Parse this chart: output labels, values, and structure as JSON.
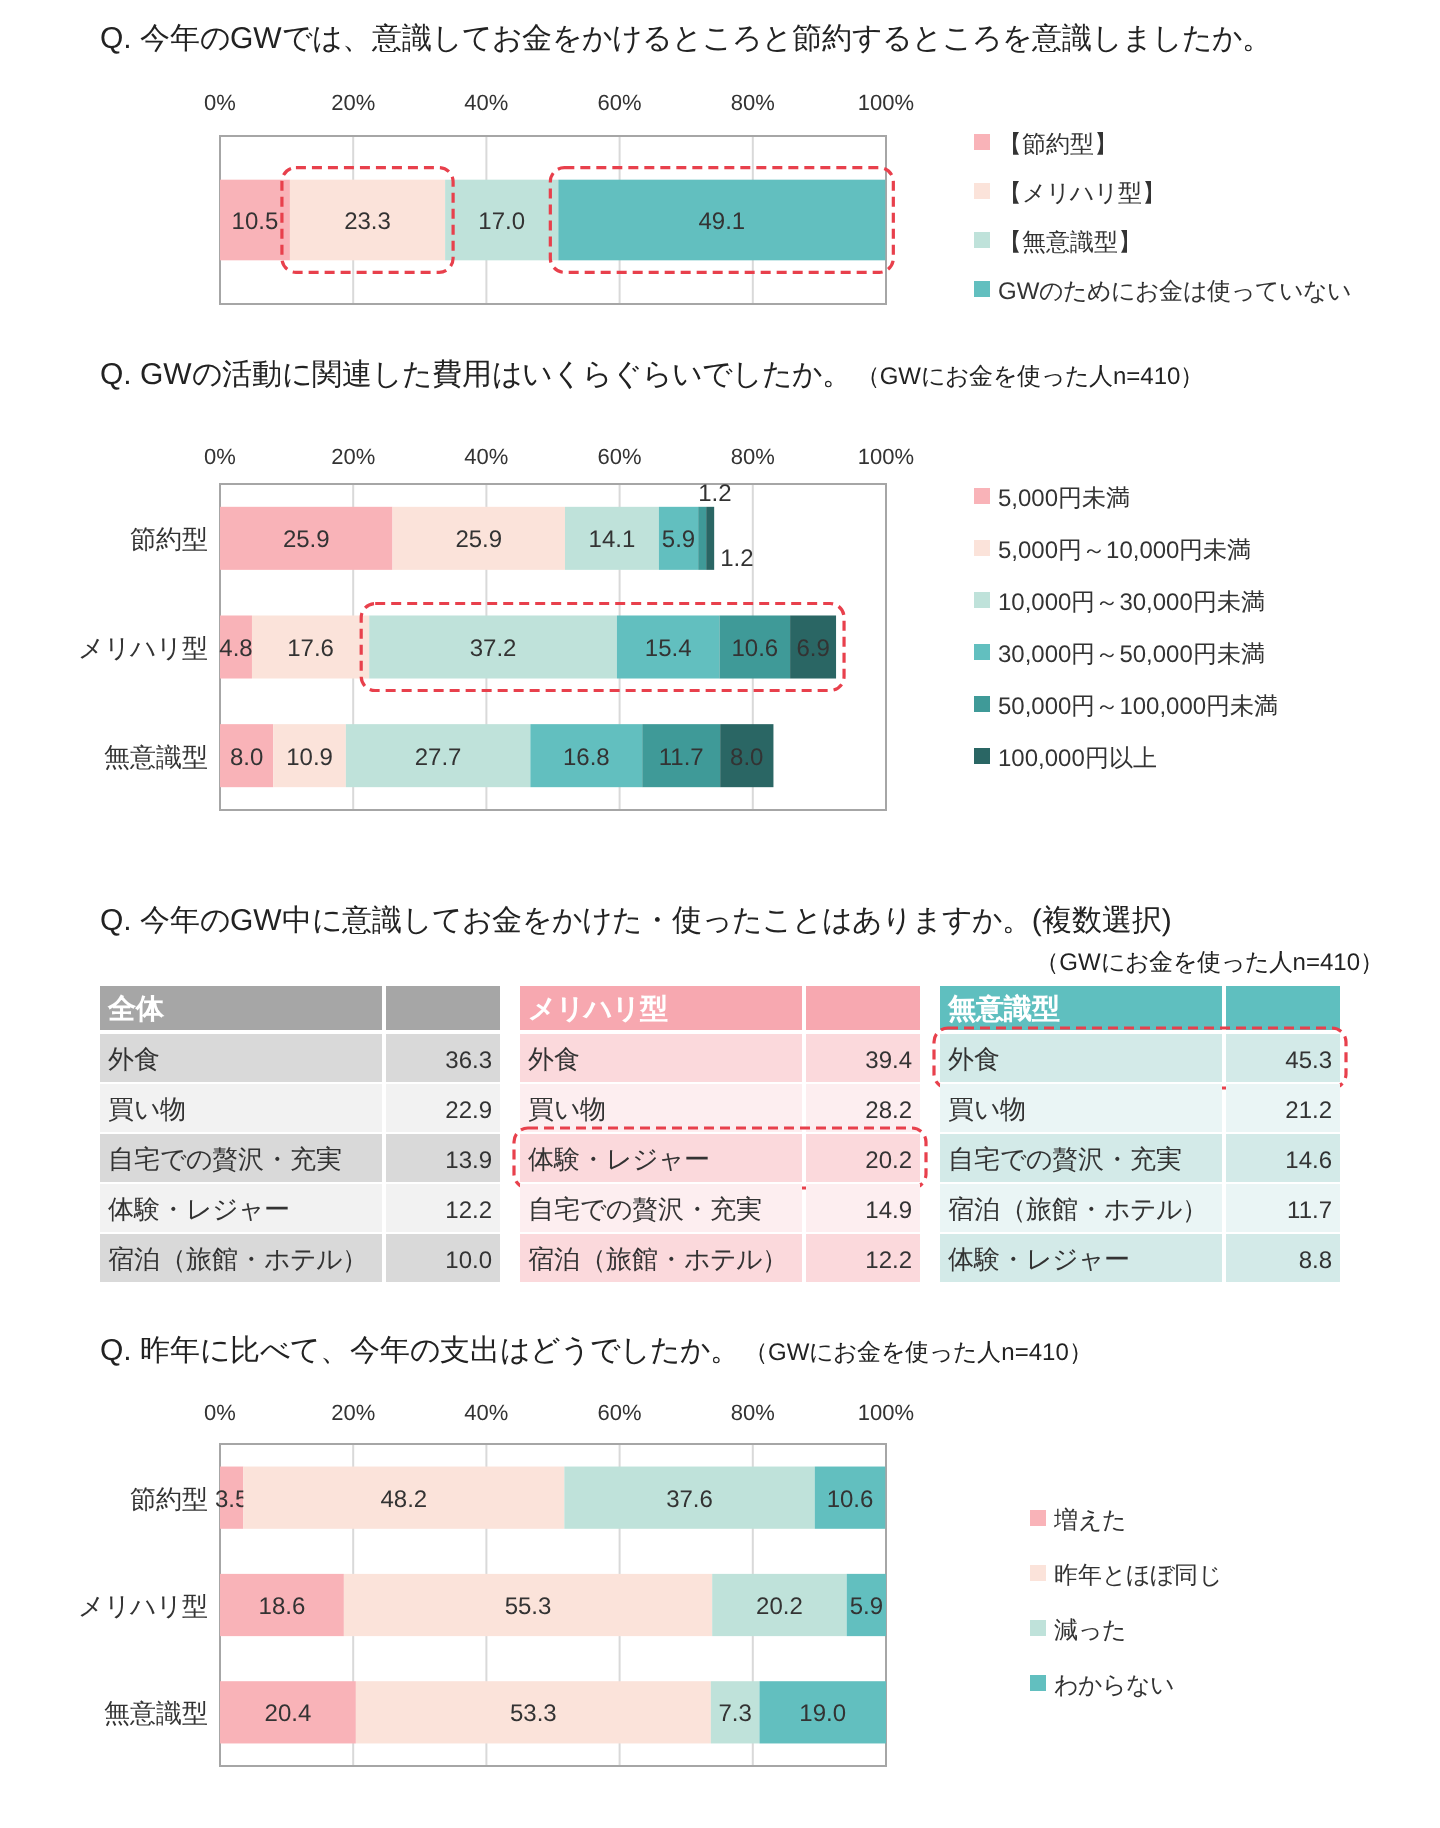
{
  "chart_data": [
    {
      "type": "bar",
      "stacked": true,
      "orientation": "horizontal",
      "title": "Q. 今年のGWでは、意識してお金をかけるところと節約するところを意識しましたか。",
      "categories": [
        null
      ],
      "xlim": [
        0,
        100
      ],
      "xticks": [
        {
          "value": 0,
          "label": "0%"
        },
        {
          "value": 20,
          "label": "20%"
        },
        {
          "value": 40,
          "label": "40%"
        },
        {
          "value": 60,
          "label": "60%"
        },
        {
          "value": 80,
          "label": "80%"
        },
        {
          "value": 100,
          "label": "100%"
        }
      ],
      "grid": "x",
      "legend": "right",
      "series": [
        {
          "name": "【節約型】",
          "color": "#f9b3b8",
          "values": [
            10.5
          ],
          "value_labels": [
            "10.5"
          ]
        },
        {
          "name": "【メリハリ型】",
          "color": "#fbe3da",
          "values": [
            23.3
          ],
          "value_labels": [
            "23.3"
          ]
        },
        {
          "name": "【無意識型】",
          "color": "#bfe2da",
          "values": [
            17.0
          ],
          "value_labels": [
            "17.0"
          ]
        },
        {
          "name": "GWのためにお金は使っていない",
          "color": "#62bfbf",
          "values": [
            49.1
          ],
          "value_labels": [
            "49.1"
          ]
        }
      ]
    },
    {
      "type": "bar",
      "stacked": true,
      "orientation": "horizontal",
      "title": "Q. GWの活動に関連した費用はいくらぐらいでしたか。",
      "subtitle": "（GWにお金を使った人n=410）",
      "categories": [
        "節約型",
        "メリハリ型",
        "無意識型"
      ],
      "xlim": [
        0,
        100
      ],
      "xticks": [
        {
          "value": 0,
          "label": "0%"
        },
        {
          "value": 20,
          "label": "20%"
        },
        {
          "value": 40,
          "label": "40%"
        },
        {
          "value": 60,
          "label": "60%"
        },
        {
          "value": 80,
          "label": "80%"
        },
        {
          "value": 100,
          "label": "100%"
        }
      ],
      "grid": "x",
      "legend": "right",
      "series": [
        {
          "name": "5,000円未満",
          "color": "#f9b3b8",
          "values": [
            25.9,
            4.8,
            8.0
          ],
          "value_labels": [
            "25.9",
            "4.8",
            "8.0"
          ]
        },
        {
          "name": "5,000円～10,000円未満",
          "color": "#fbe3da",
          "values": [
            25.9,
            17.6,
            10.9
          ],
          "value_labels": [
            "25.9",
            "17.6",
            "10.9"
          ]
        },
        {
          "name": "10,000円～30,000円未満",
          "color": "#bfe2da",
          "values": [
            14.1,
            37.2,
            27.7
          ],
          "value_labels": [
            "14.1",
            "37.2",
            "27.7"
          ]
        },
        {
          "name": "30,000円～50,000円未満",
          "color": "#62bfbf",
          "values": [
            5.9,
            15.4,
            16.8
          ],
          "value_labels": [
            "5.9",
            "15.4",
            "16.8"
          ]
        },
        {
          "name": "50,000円～100,000円未満",
          "color": "#3f9a98",
          "values": [
            1.2,
            10.6,
            11.7
          ],
          "value_labels": [
            "1.2",
            "10.6",
            "11.7"
          ]
        },
        {
          "name": "100,000円以上",
          "color": "#2a6664",
          "values": [
            1.2,
            6.9,
            8.0
          ],
          "value_labels": [
            "1.2",
            "6.9",
            "8.0"
          ]
        }
      ]
    },
    {
      "type": "other",
      "title": "全体",
      "annotations": [
        "Q. 今年のGW中に意識してお金をかけた・使ったことはありますか。(複数選択)",
        "（GWにお金を使った人n=410）"
      ],
      "color": "#a6a6a6",
      "colors": [
        "#d9d9d9",
        "#f2f2f2",
        "#d9d9d9",
        "#f2f2f2",
        "#d9d9d9"
      ],
      "categories": [
        "外食",
        "買い物",
        "自宅での贅沢・充実",
        "体験・レジャー",
        "宿泊（旅館・ホテル）"
      ],
      "value_labels": [
        "36.3",
        "22.9",
        "13.9",
        "12.2",
        "10.0"
      ]
    },
    {
      "type": "other",
      "title": "メリハリ型",
      "color": "#f7a8b0",
      "colors": [
        "#fbd9dc",
        "#fdeef0",
        "#fbd9dc",
        "#fdeef0",
        "#fbd9dc"
      ],
      "categories": [
        "外食",
        "買い物",
        "体験・レジャー",
        "自宅での贅沢・充実",
        "宿泊（旅館・ホテル）"
      ],
      "value_labels": [
        "39.4",
        "28.2",
        "20.2",
        "14.9",
        "12.2"
      ]
    },
    {
      "type": "other",
      "title": "無意識型",
      "color": "#5fbfbf",
      "colors": [
        "#d3eae8",
        "#eaf5f5",
        "#d3eae8",
        "#eaf5f5",
        "#d3eae8"
      ],
      "categories": [
        "外食",
        "買い物",
        "自宅での贅沢・充実",
        "宿泊（旅館・ホテル）",
        "体験・レジャー"
      ],
      "value_labels": [
        "45.3",
        "21.2",
        "14.6",
        "11.7",
        "8.8"
      ]
    },
    {
      "type": "bar",
      "stacked": true,
      "orientation": "horizontal",
      "title": "Q. 昨年に比べて、今年の支出はどうでしたか。",
      "subtitle": "（GWにお金を使った人n=410）",
      "categories": [
        "節約型",
        "メリハリ型",
        "無意識型"
      ],
      "xlim": [
        0,
        100
      ],
      "xticks": [
        {
          "value": 0,
          "label": "0%"
        },
        {
          "value": 20,
          "label": "20%"
        },
        {
          "value": 40,
          "label": "40%"
        },
        {
          "value": 60,
          "label": "60%"
        },
        {
          "value": 80,
          "label": "80%"
        },
        {
          "value": 100,
          "label": "100%"
        }
      ],
      "grid": "x",
      "legend": "right",
      "series": [
        {
          "name": "増えた",
          "color": "#f9b3b8",
          "values": [
            3.5,
            18.6,
            20.4
          ],
          "value_labels": [
            "3.5",
            "18.6",
            "20.4"
          ]
        },
        {
          "name": "昨年とほぼ同じ",
          "color": "#fbe3da",
          "values": [
            48.2,
            55.3,
            53.3
          ],
          "value_labels": [
            "48.2",
            "55.3",
            "53.3"
          ]
        },
        {
          "name": "減った",
          "color": "#bfe2da",
          "values": [
            37.6,
            20.2,
            7.3
          ],
          "value_labels": [
            "37.6",
            "20.2",
            "7.3"
          ]
        },
        {
          "name": "わからない",
          "color": "#62bfbf",
          "values": [
            10.6,
            5.9,
            19.0
          ],
          "value_labels": [
            "10.6",
            "5.9",
            "19.0"
          ]
        }
      ]
    }
  ]
}
